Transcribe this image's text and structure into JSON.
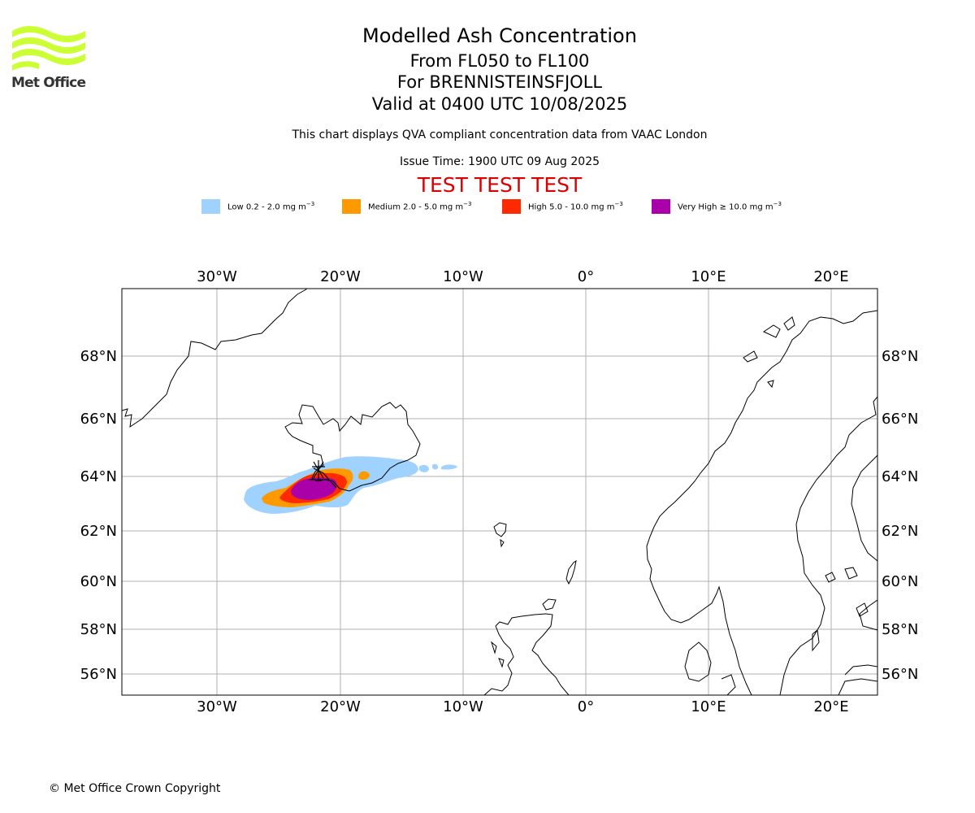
{
  "logo": {
    "text": "Met Office",
    "wave_color": "#ccff33"
  },
  "title": "Modelled Ash Concentration",
  "subtitle_lines": [
    "From FL050 to FL100",
    "For BRENNISTEINSFJOLL",
    "Valid at 0400 UTC 10/08/2025"
  ],
  "notice": "This chart displays QVA compliant concentration data from VAAC London",
  "issue_time": "Issue Time: 1900 UTC 09 Aug 2025",
  "test_banner": {
    "text": "TEST TEST TEST",
    "color": "#dd0000"
  },
  "legend": [
    {
      "label": "Low 0.2 - 2.0 mg m",
      "exp": "−3",
      "color": "#a0d2ff"
    },
    {
      "label": "Medium 2.0 - 5.0 mg m",
      "exp": "−3",
      "color": "#ff9900"
    },
    {
      "label": "High 5.0 - 10.0 mg m",
      "exp": "−3",
      "color": "#ff2a00"
    },
    {
      "label": "Very High  ≥  10.0 mg m",
      "exp": "−3",
      "color": "#aa00aa"
    }
  ],
  "map": {
    "lon_range": [
      -37.7,
      23.9
    ],
    "lat_range": [
      55.2,
      70.2
    ],
    "lon_ticks": [
      "30°W",
      "20°W",
      "10°W",
      "0°",
      "10°E",
      "20°E"
    ],
    "lat_ticks": [
      "68°N",
      "66°N",
      "64°N",
      "62°N",
      "60°N",
      "58°N",
      "56°N"
    ],
    "gridlines": true,
    "volcano_marker": "black star-like flight path marker near 22°W 64°N"
  },
  "copyright": "© Met Office Crown Copyright"
}
